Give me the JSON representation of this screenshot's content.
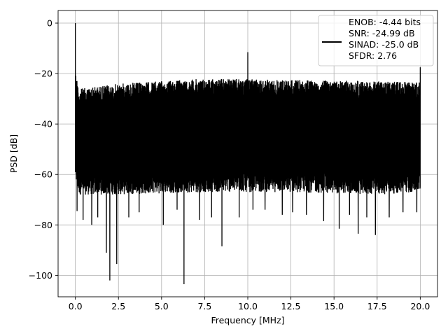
{
  "chart_data": {
    "type": "line",
    "title": "",
    "xlabel": "Frequency [MHz]",
    "ylabel": "PSD [dB]",
    "xlim": [
      -1.0,
      21.0
    ],
    "ylim": [
      -108.5,
      5.0
    ],
    "x_ticks": [
      0.0,
      2.5,
      5.0,
      7.5,
      10.0,
      12.5,
      15.0,
      17.5,
      20.0
    ],
    "x_tick_labels": [
      "0.0",
      "2.5",
      "5.0",
      "7.5",
      "10.0",
      "12.5",
      "15.0",
      "17.5",
      "20.0"
    ],
    "y_ticks": [
      0,
      -20,
      -40,
      -60,
      -80,
      -100
    ],
    "y_tick_labels": [
      "0",
      "−20",
      "−40",
      "−60",
      "−80",
      "−100"
    ],
    "grid": true,
    "line_color": "#000000",
    "legend": {
      "placement": "top-right",
      "lines": [
        "ENOB: -4.44 bits",
        "SNR: -24.99 dB",
        "SINAD: -25.0 dB",
        "SFDR: 2.76"
      ]
    },
    "series": [
      {
        "x_range": [
          0.0,
          20.0
        ],
        "noise_band_upper": -24.0,
        "noise_band_lower": -65.0,
        "noise_band_envelope": [
          {
            "x": 0.0,
            "upper": -18.5,
            "lower": -60.0
          },
          {
            "x": 0.2,
            "upper": -26.0,
            "lower": -66.0
          },
          {
            "x": 2.5,
            "upper": -24.0,
            "lower": -66.0
          },
          {
            "x": 7.5,
            "upper": -22.0,
            "lower": -65.0
          },
          {
            "x": 12.5,
            "upper": -22.5,
            "lower": -65.0
          },
          {
            "x": 17.5,
            "upper": -23.0,
            "lower": -66.0
          },
          {
            "x": 20.0,
            "upper": -23.5,
            "lower": -65.0
          }
        ],
        "peaks": [
          {
            "x": 0.0,
            "y": 0.0
          },
          {
            "x": 10.0,
            "y": -11.5
          },
          {
            "x": 20.0,
            "y": -17.5
          }
        ],
        "dips": [
          {
            "x": 0.1,
            "y": -74.5
          },
          {
            "x": 0.45,
            "y": -78.0
          },
          {
            "x": 0.95,
            "y": -80.0
          },
          {
            "x": 1.3,
            "y": -77.0
          },
          {
            "x": 1.8,
            "y": -91.0
          },
          {
            "x": 2.0,
            "y": -102.0
          },
          {
            "x": 2.4,
            "y": -95.5
          },
          {
            "x": 3.1,
            "y": -77.0
          },
          {
            "x": 3.7,
            "y": -75.0
          },
          {
            "x": 5.1,
            "y": -80.0
          },
          {
            "x": 5.9,
            "y": -74.0
          },
          {
            "x": 6.3,
            "y": -103.5
          },
          {
            "x": 7.2,
            "y": -78.0
          },
          {
            "x": 7.9,
            "y": -77.0
          },
          {
            "x": 8.5,
            "y": -88.5
          },
          {
            "x": 9.5,
            "y": -77.0
          },
          {
            "x": 10.3,
            "y": -74.0
          },
          {
            "x": 11.0,
            "y": -74.0
          },
          {
            "x": 12.0,
            "y": -76.0
          },
          {
            "x": 12.6,
            "y": -75.0
          },
          {
            "x": 13.4,
            "y": -76.0
          },
          {
            "x": 14.4,
            "y": -78.5
          },
          {
            "x": 15.3,
            "y": -81.5
          },
          {
            "x": 15.9,
            "y": -76.0
          },
          {
            "x": 16.4,
            "y": -83.5
          },
          {
            "x": 16.9,
            "y": -77.0
          },
          {
            "x": 17.4,
            "y": -84.0
          },
          {
            "x": 18.2,
            "y": -77.0
          },
          {
            "x": 19.0,
            "y": -75.0
          },
          {
            "x": 19.8,
            "y": -75.0
          }
        ]
      }
    ]
  }
}
